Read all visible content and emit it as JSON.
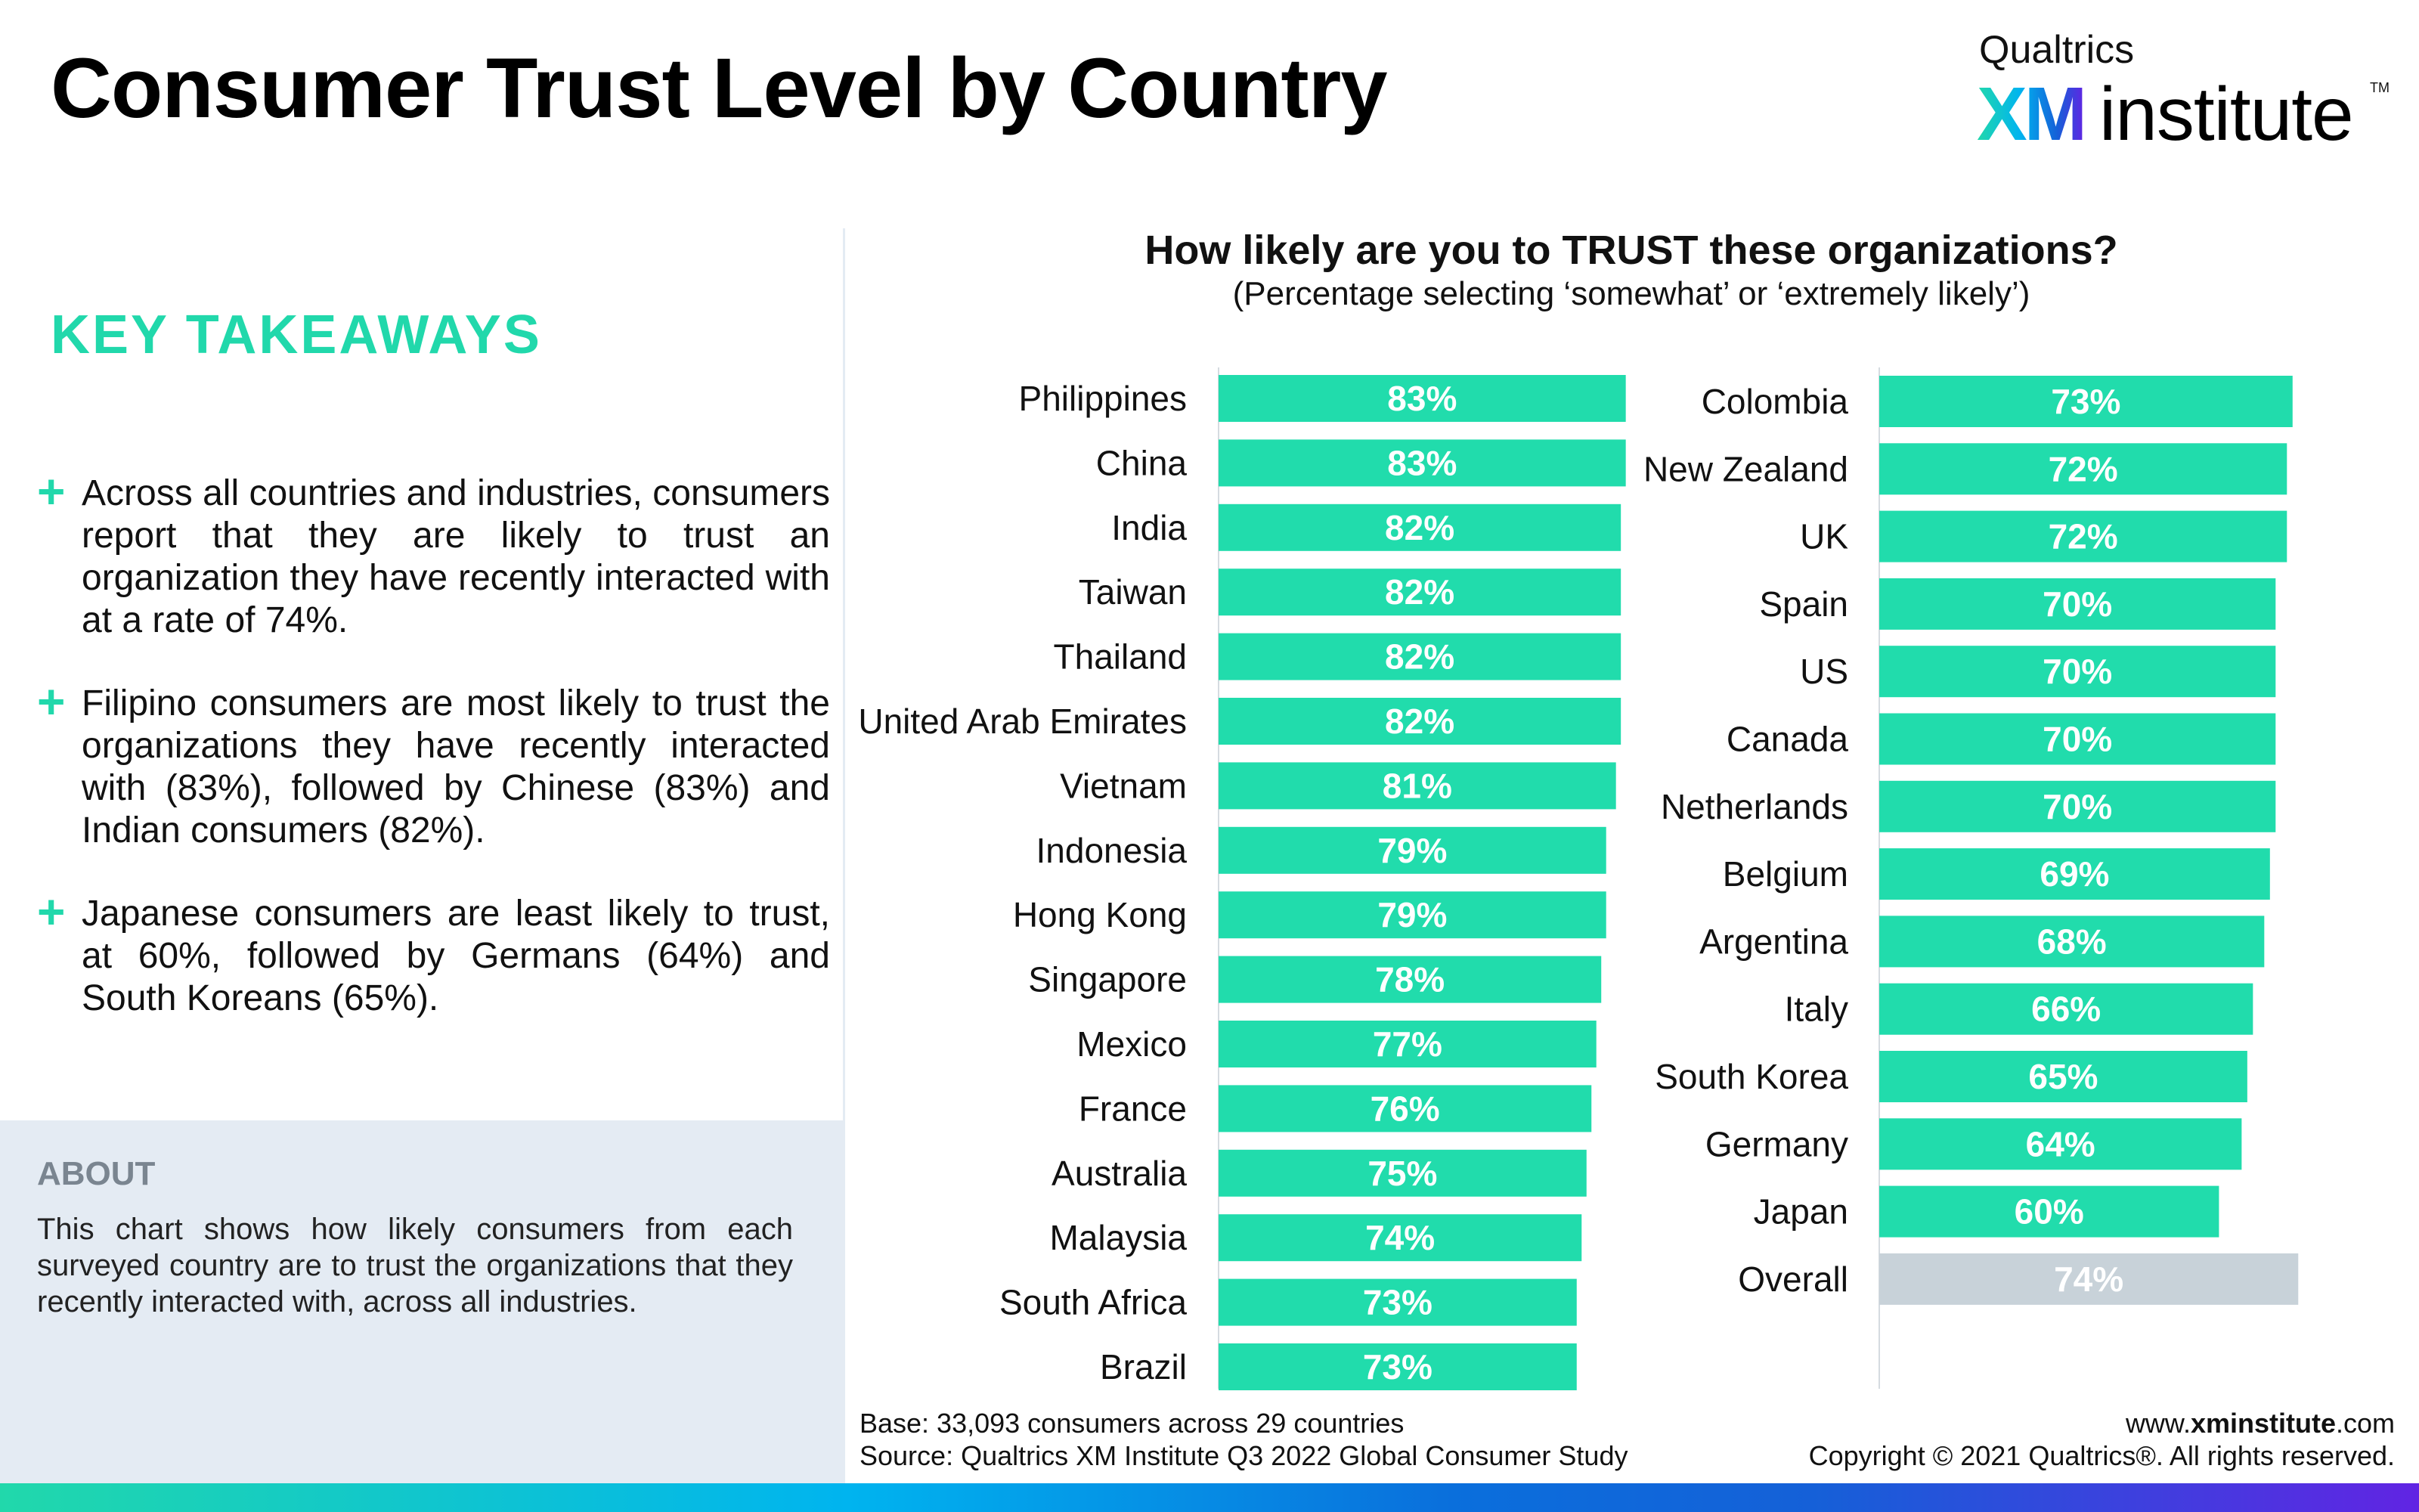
{
  "header": {
    "title": "Consumer Trust Level by Country"
  },
  "logo": {
    "line1": "Qualtrics",
    "xm": "XM",
    "institute": "institute",
    "tm": "TM"
  },
  "takeaways": {
    "heading": "KEY TAKEAWAYS",
    "plus": "+",
    "items": [
      "Across all countries and industries, consumers report that they are likely to trust an organization they have recently interacted with at a rate of 74%.",
      "Filipino consumers are most likely to trust the organizations they have recently interacted with (83%), followed by Chinese (83%) and Indian consumers (82%).",
      "Japanese consumers are least likely to trust, at 60%, followed by Germans (64%) and South Koreans (65%)."
    ]
  },
  "about": {
    "heading": "ABOUT",
    "text": "This chart shows how likely consumers from each surveyed country are to trust the organizations that they recently interacted with, across all industries."
  },
  "chart_data": {
    "type": "bar",
    "orientation": "horizontal",
    "title": "How likely are you to TRUST these organizations?",
    "subtitle": "(Percentage selecting ‘somewhat’ or ‘extremely likely’)",
    "unit": "%",
    "colors": {
      "bar": "#21dcac",
      "overall": "#c8d2d9",
      "label": "#ffffff"
    },
    "panels": [
      {
        "categories": [
          "Philippines",
          "China",
          "India",
          "Taiwan",
          "Thailand",
          "United Arab Emirates",
          "Vietnam",
          "Indonesia",
          "Hong Kong",
          "Singapore",
          "Mexico",
          "France",
          "Australia",
          "Malaysia",
          "South Africa",
          "Brazil"
        ],
        "values": [
          83,
          83,
          82,
          82,
          82,
          82,
          81,
          79,
          79,
          78,
          77,
          76,
          75,
          74,
          73,
          73
        ]
      },
      {
        "categories": [
          "Colombia",
          "New Zealand",
          "UK",
          "Spain",
          "US",
          "Canada",
          "Netherlands",
          "Belgium",
          "Argentina",
          "Italy",
          "South Korea",
          "Germany",
          "Japan",
          "Overall"
        ],
        "values": [
          73,
          72,
          72,
          70,
          70,
          70,
          70,
          69,
          68,
          66,
          65,
          64,
          60,
          74
        ]
      }
    ]
  },
  "footer": {
    "base": "Base: 33,093 consumers across 29 countries",
    "source": "Source: Qualtrics XM Institute Q3 2022 Global Consumer Study",
    "url_pre": "www.",
    "url_bold": "xminstitute",
    "url_post": ".com",
    "copyright": "Copyright © 2021 Qualtrics®. All rights reserved."
  }
}
